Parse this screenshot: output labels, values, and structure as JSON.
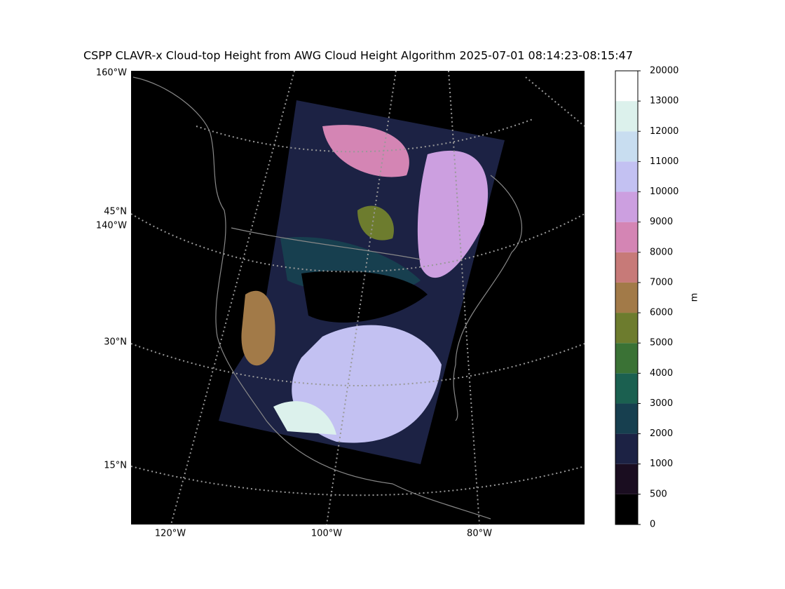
{
  "title": "CSPP CLAVR-x Cloud-top Height from AWG Cloud Height Algorithm 2025-07-01 08:14:23-08:15:47",
  "map": {
    "left_labels": [
      "160°W",
      "45°N",
      "140°W",
      "30°N",
      "15°N"
    ],
    "bottom_labels": [
      "120°W",
      "100°W",
      "80°W"
    ]
  },
  "colorbar": {
    "label": "m",
    "ticks": [
      0,
      500,
      1000,
      2000,
      3000,
      4000,
      5000,
      6000,
      7000,
      8000,
      9000,
      10000,
      11000,
      12000,
      13000,
      20000
    ],
    "colors": [
      "#000000",
      "#1a0d20",
      "#1c2244",
      "#173f4f",
      "#1b6050",
      "#3a7235",
      "#6d7c2e",
      "#a27a48",
      "#c77a78",
      "#d485b4",
      "#cc9fe0",
      "#c3c1f2",
      "#c8ddf0",
      "#dcf1ec",
      "#ffffff"
    ]
  }
}
